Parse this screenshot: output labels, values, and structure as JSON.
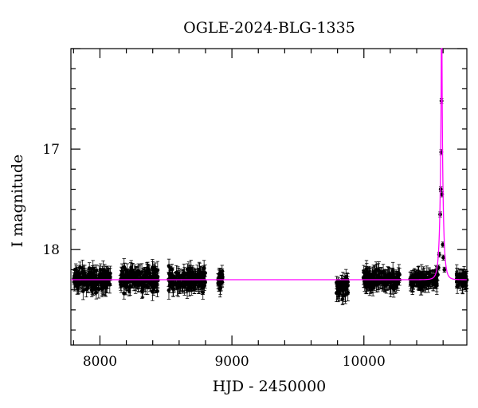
{
  "chart_data": {
    "type": "scatter",
    "title": "OGLE-2024-BLG-1335",
    "xlabel": "HJD - 2450000",
    "ylabel": "I magnitude",
    "xlim": [
      7780,
      10780
    ],
    "ylim": [
      18.95,
      16.0
    ],
    "y_inverted": true,
    "x_ticks": [
      8000,
      9000,
      10000
    ],
    "x_tick_labels": [
      "8000",
      "9000",
      "10000"
    ],
    "y_ticks": [
      17,
      18
    ],
    "y_tick_labels": [
      "17",
      "18"
    ],
    "grid": false,
    "legend": "none",
    "colors": {
      "data": "#000000",
      "model": "#ff00ff"
    },
    "baseline_mag": 18.3,
    "observing_seasons": [
      {
        "x": [
          7800,
          8080
        ],
        "center_mag": 18.3,
        "spread": 0.1
      },
      {
        "x": [
          8150,
          8440
        ],
        "center_mag": 18.3,
        "spread": 0.1
      },
      {
        "x": [
          8520,
          8800
        ],
        "center_mag": 18.3,
        "spread": 0.1
      },
      {
        "x": [
          8895,
          8935
        ],
        "center_mag": 18.3,
        "spread": 0.08
      },
      {
        "x": [
          9790,
          9880
        ],
        "center_mag": 18.35,
        "spread": 0.1
      },
      {
        "x": [
          9990,
          10270
        ],
        "center_mag": 18.3,
        "spread": 0.09
      },
      {
        "x": [
          10350,
          10560
        ],
        "center_mag": 18.3,
        "spread": 0.08
      },
      {
        "x": [
          10700,
          10780
        ],
        "center_mag": 18.3,
        "spread": 0.06
      }
    ],
    "peak_points": [
      {
        "x": 10565,
        "y": 18.18
      },
      {
        "x": 10570,
        "y": 18.05
      },
      {
        "x": 10578,
        "y": 17.65
      },
      {
        "x": 10582,
        "y": 17.4
      },
      {
        "x": 10586,
        "y": 17.03
      },
      {
        "x": 10588,
        "y": 16.52
      },
      {
        "x": 10592,
        "y": 17.45
      },
      {
        "x": 10598,
        "y": 17.95
      },
      {
        "x": 10602,
        "y": 18.08
      },
      {
        "x": 10610,
        "y": 18.2
      }
    ],
    "model": {
      "type": "pspl",
      "t0": 10589,
      "tE": 22,
      "u0": 0.02,
      "baseline_mag": 18.3
    }
  }
}
